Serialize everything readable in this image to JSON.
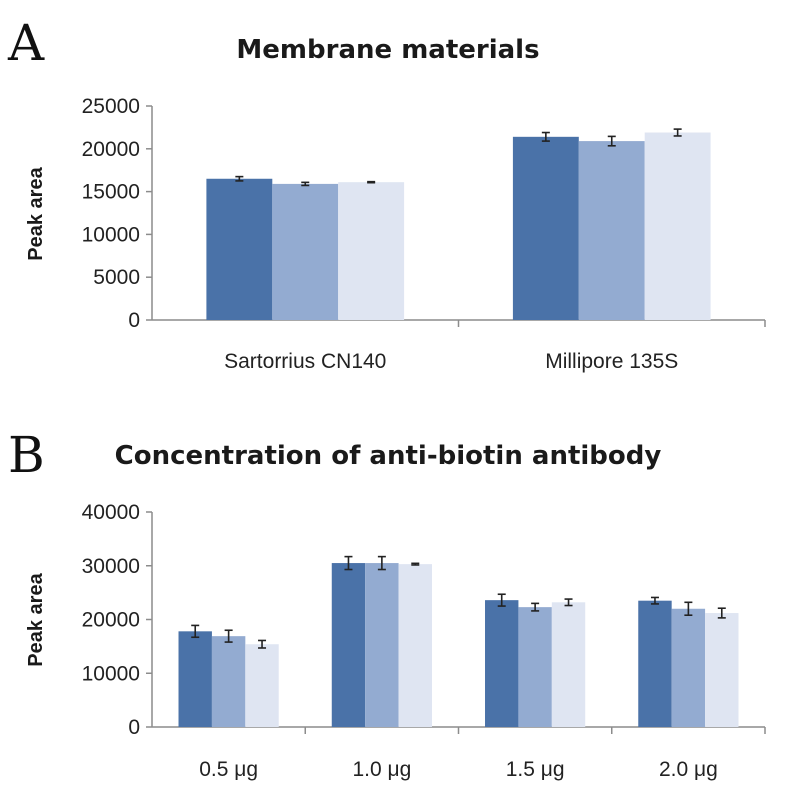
{
  "colors": {
    "series1": "#4a72a8",
    "series2": "#93abd1",
    "series3": "#dfe5f2"
  },
  "chart_data": [
    {
      "panel_label": "A",
      "type": "bar",
      "title": "Membrane materials",
      "ylabel": "Peak area",
      "xlabel": "",
      "ylim": [
        0,
        25000
      ],
      "yticks": [
        "0",
        "5000",
        "10000",
        "15000",
        "20000",
        "25000"
      ],
      "categories": [
        "Sartorrius CN140",
        "Millipore 135S"
      ],
      "series": [
        {
          "values": [
            16500,
            21400
          ],
          "errors": [
            250,
            500
          ]
        },
        {
          "values": [
            15900,
            20900
          ],
          "errors": [
            180,
            550
          ]
        },
        {
          "values": [
            16100,
            21900
          ],
          "errors": [
            60,
            400
          ]
        }
      ]
    },
    {
      "panel_label": "B",
      "type": "bar",
      "title": "Concentration of anti-biotin antibody",
      "ylabel": "Peak area",
      "xlabel": "",
      "ylim": [
        0,
        40000
      ],
      "yticks": [
        "0",
        "10000",
        "20000",
        "30000",
        "40000"
      ],
      "categories": [
        "0.5 μg",
        "1.0 μg",
        "1.5 μg",
        "2.0 μg"
      ],
      "series": [
        {
          "values": [
            17800,
            30500,
            23600,
            23500
          ],
          "errors": [
            1100,
            1200,
            1100,
            600
          ]
        },
        {
          "values": [
            16900,
            30500,
            22300,
            22000
          ],
          "errors": [
            1100,
            1200,
            700,
            1200
          ]
        },
        {
          "values": [
            15400,
            30300,
            23200,
            21200
          ],
          "errors": [
            700,
            150,
            600,
            900
          ]
        }
      ]
    }
  ]
}
